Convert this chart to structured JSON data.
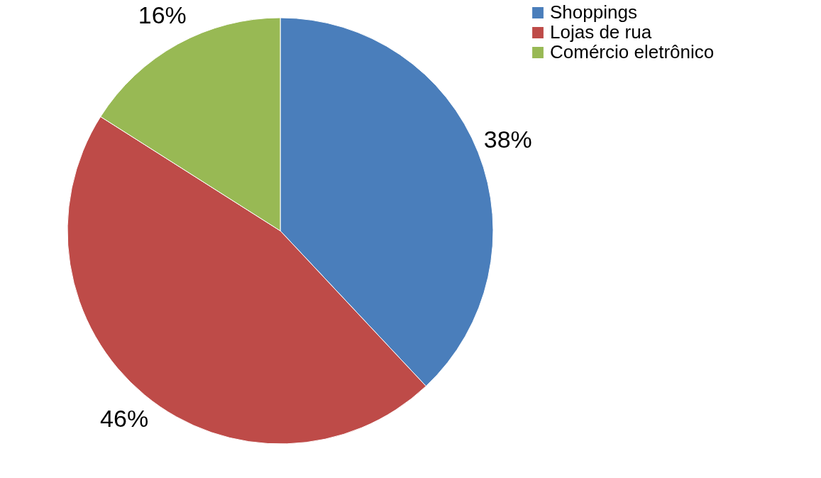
{
  "chart_data": {
    "type": "pie",
    "categories": [
      "Shoppings",
      "Lojas de rua",
      "Comércio eletrônico"
    ],
    "values": [
      38,
      46,
      16
    ],
    "colors": [
      "#4a7ebb",
      "#be4b48",
      "#98b954"
    ],
    "value_labels": [
      "38%",
      "46%",
      "16%"
    ],
    "legend": "right"
  }
}
